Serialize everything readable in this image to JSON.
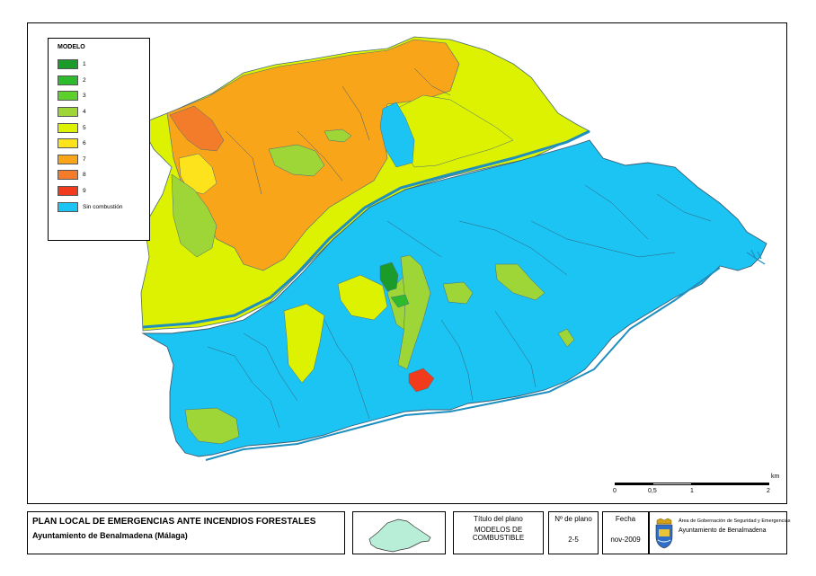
{
  "map": {
    "legend": {
      "title": "MODELO",
      "items": [
        {
          "label": "1",
          "color": "#1a9b2a"
        },
        {
          "label": "2",
          "color": "#2dba2d"
        },
        {
          "label": "3",
          "color": "#5cd12c"
        },
        {
          "label": "4",
          "color": "#9ed638"
        },
        {
          "label": "5",
          "color": "#dcf200"
        },
        {
          "label": "6",
          "color": "#fde31c"
        },
        {
          "label": "7",
          "color": "#f9a51a"
        },
        {
          "label": "8",
          "color": "#f27c2a"
        },
        {
          "label": "9",
          "color": "#f23a1c"
        },
        {
          "label": "Sin combustión",
          "color": "#1cc4f4"
        }
      ]
    },
    "scale": {
      "unit": "km",
      "ticks": [
        "0",
        "0,5",
        "1",
        "2"
      ]
    }
  },
  "footer": {
    "title": "PLAN LOCAL DE EMERGENCIAS ANTE INCENDIOS FORESTALES",
    "subtitle": "Ayuntamiento de Benalmadena (Málaga)",
    "plan_title_label": "Título del plano",
    "plan_title_value_line1": "MODELOS DE",
    "plan_title_value_line2": "COMBUSTIBLE",
    "plan_number_label": "Nº de plano",
    "plan_number_value": "2-5",
    "date_label": "Fecha",
    "date_value": "nov-2009",
    "org_line1": "Área de Gobernación de Seguridad y Emergencias",
    "org_line2": "Ayuntamiento de Benalmadena"
  }
}
